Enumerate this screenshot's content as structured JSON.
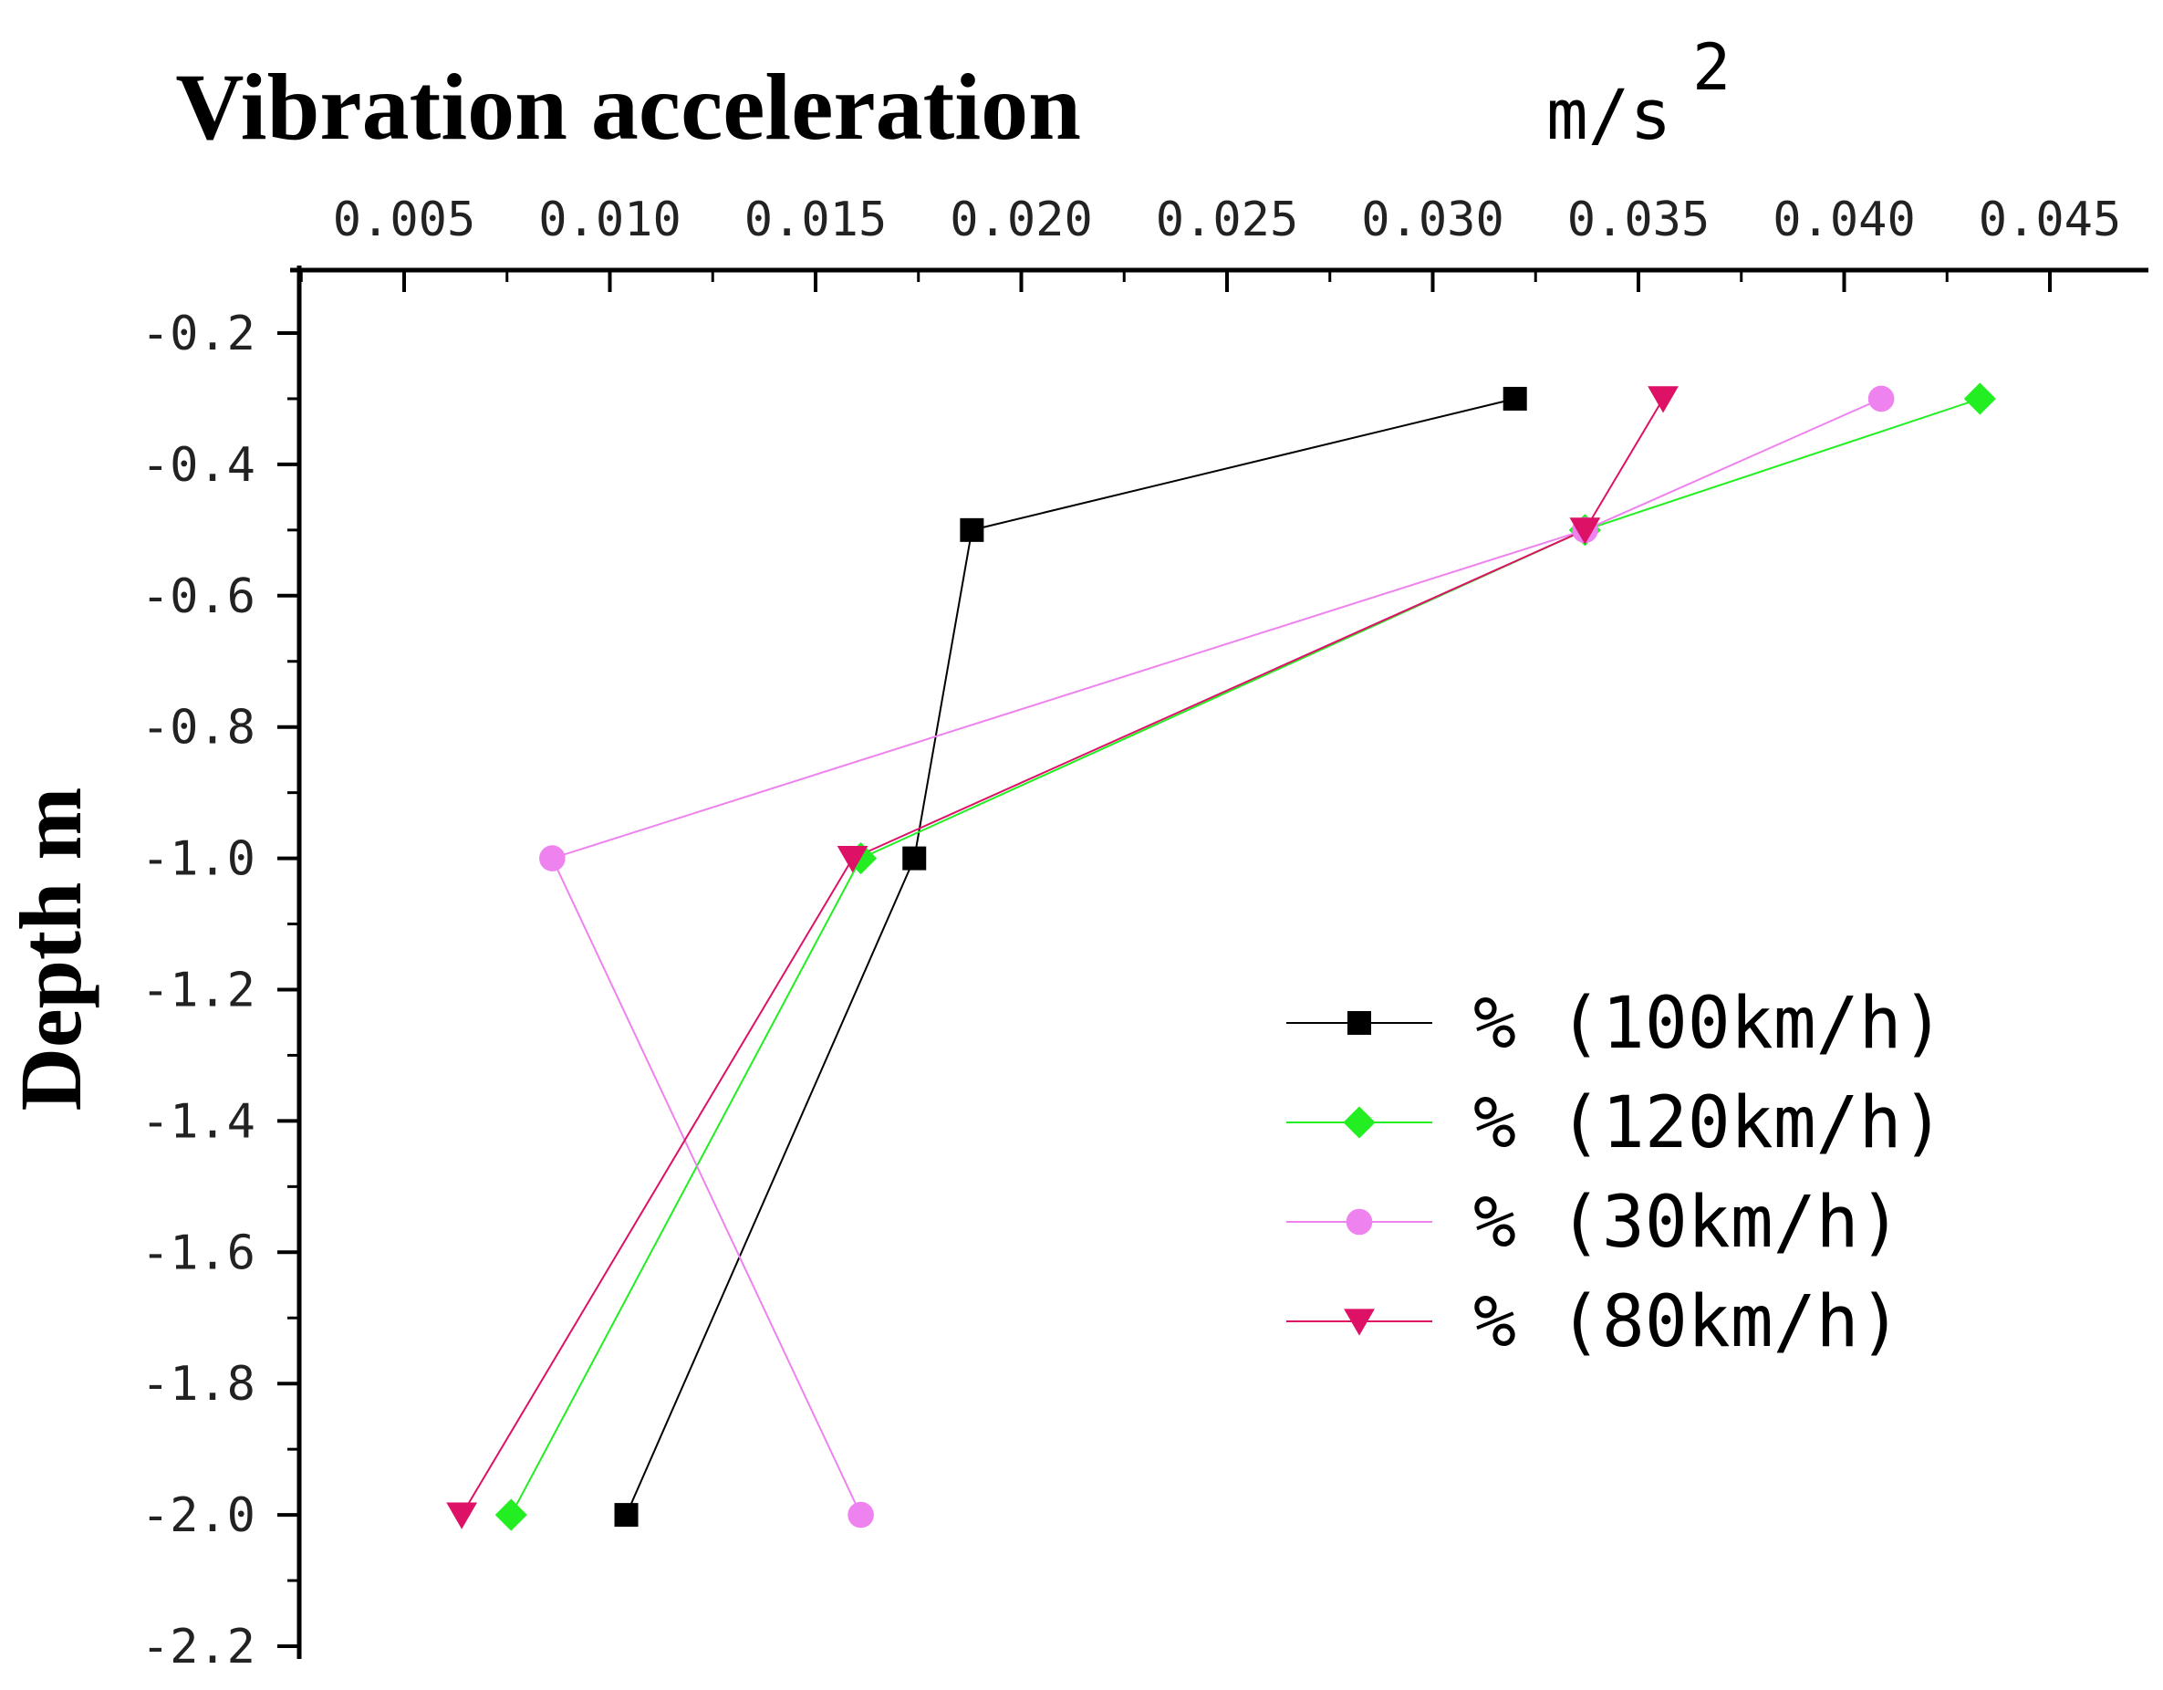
{
  "chart_data": {
    "type": "line",
    "title": "Vibration acceleration",
    "xlabel": "Vibration acceleration",
    "xlabel_unit": "m/s",
    "xlabel_unit_superscript": "2",
    "ylabel": "Depth m",
    "xlim": [
      0.0025,
      0.0475
    ],
    "ylim": [
      -2.2,
      -0.1
    ],
    "x_axis_position": "top",
    "x_ticks": [
      0.005,
      0.01,
      0.015,
      0.02,
      0.025,
      0.03,
      0.035,
      0.04,
      0.045
    ],
    "x_tick_labels": [
      "0.005",
      "0.010",
      "0.015",
      "0.020",
      "0.025",
      "0.030",
      "0.035",
      "0.040",
      "0.045"
    ],
    "y_ticks": [
      -0.2,
      -0.4,
      -0.6,
      -0.8,
      -1.0,
      -1.2,
      -1.4,
      -1.6,
      -1.8,
      -2.0,
      -2.2
    ],
    "y_tick_labels": [
      "-0.2",
      "-0.4",
      "-0.6",
      "-0.8",
      "-1.0",
      "-1.2",
      "-1.4",
      "-1.6",
      "-1.8",
      "-2.0",
      "-2.2"
    ],
    "grid": false,
    "legend_position": "center-right",
    "series": [
      {
        "name": "% (100km/h)",
        "color": "#000000",
        "marker": "square",
        "points": [
          {
            "x": 0.032,
            "y": -0.3
          },
          {
            "x": 0.0188,
            "y": -0.5
          },
          {
            "x": 0.0174,
            "y": -1.0
          },
          {
            "x": 0.0104,
            "y": -2.0
          }
        ]
      },
      {
        "name": "% (120km/h)",
        "color": "#22ee22",
        "marker": "diamond",
        "points": [
          {
            "x": 0.0433,
            "y": -0.3
          },
          {
            "x": 0.0337,
            "y": -0.5
          },
          {
            "x": 0.0161,
            "y": -1.0
          },
          {
            "x": 0.0076,
            "y": -2.0
          }
        ]
      },
      {
        "name": "% (30km/h)",
        "color": "#ee82ee",
        "marker": "circle",
        "points": [
          {
            "x": 0.0409,
            "y": -0.3
          },
          {
            "x": 0.0337,
            "y": -0.5
          },
          {
            "x": 0.0086,
            "y": -1.0
          },
          {
            "x": 0.0161,
            "y": -2.0
          }
        ]
      },
      {
        "name": "% (80km/h)",
        "color": "#dd1166",
        "marker": "triangle-down",
        "points": [
          {
            "x": 0.0356,
            "y": -0.3
          },
          {
            "x": 0.0337,
            "y": -0.5
          },
          {
            "x": 0.0159,
            "y": -1.0
          },
          {
            "x": 0.0064,
            "y": -2.0
          }
        ]
      }
    ]
  }
}
